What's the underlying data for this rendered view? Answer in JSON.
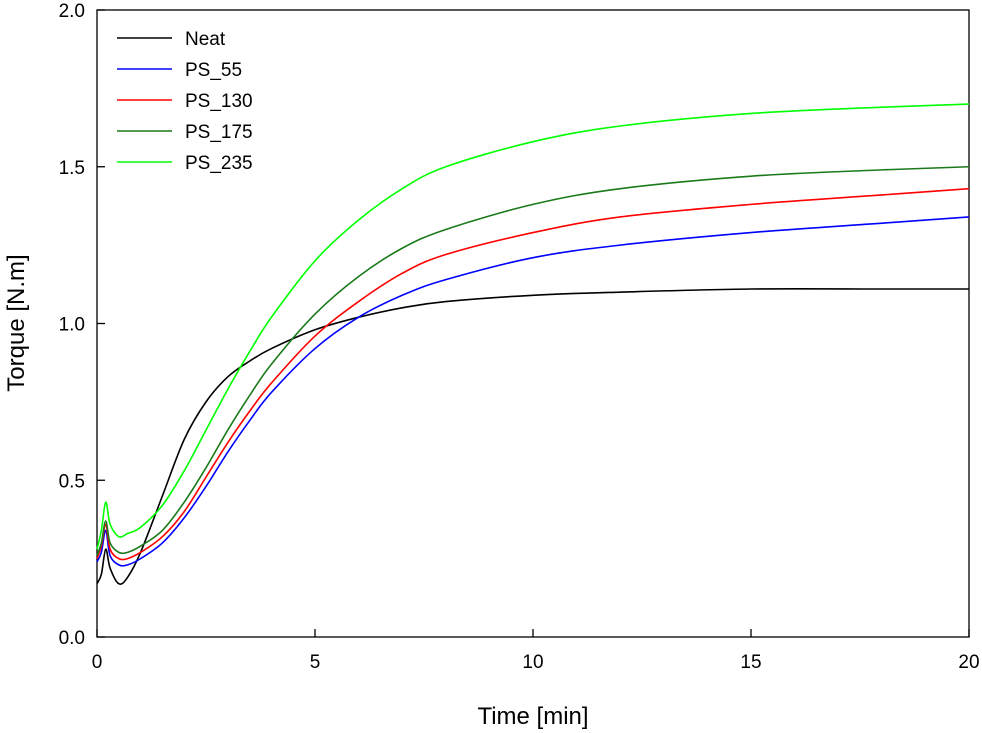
{
  "chart_data": {
    "type": "line",
    "title": "",
    "xlabel": "Time [min]",
    "ylabel": "Torque [N.m]",
    "xlim": [
      0,
      20
    ],
    "ylim": [
      0,
      2.0
    ],
    "xticks": [
      0,
      5,
      10,
      15,
      20
    ],
    "xtick_labels": [
      "0",
      "5",
      "10",
      "15",
      "20"
    ],
    "yticks": [
      0,
      0.5,
      1.0,
      1.5,
      2.0
    ],
    "ytick_labels": [
      "0.0",
      "0.5",
      "1.0",
      "1.5",
      "2.0"
    ],
    "grid": false,
    "legend_position": "top-left",
    "series": [
      {
        "name": "Neat",
        "color": "#000000",
        "x": [
          0,
          0.1,
          0.2,
          0.3,
          0.5,
          0.7,
          1.0,
          1.5,
          2.0,
          2.5,
          3.0,
          3.5,
          4.0,
          5.0,
          6.0,
          7.0,
          8.0,
          10.0,
          12.0,
          15.0,
          18.0,
          20.0
        ],
        "y": [
          0.17,
          0.2,
          0.28,
          0.22,
          0.17,
          0.19,
          0.27,
          0.45,
          0.63,
          0.75,
          0.83,
          0.88,
          0.92,
          0.98,
          1.02,
          1.05,
          1.07,
          1.09,
          1.1,
          1.11,
          1.11,
          1.11
        ]
      },
      {
        "name": "PS_55",
        "color": "#0000ff",
        "x": [
          0,
          0.1,
          0.2,
          0.3,
          0.5,
          0.7,
          1.0,
          1.5,
          2.0,
          2.5,
          3.0,
          3.5,
          4.0,
          5.0,
          6.0,
          7.0,
          8.0,
          10.0,
          12.0,
          15.0,
          18.0,
          20.0
        ],
        "y": [
          0.24,
          0.27,
          0.34,
          0.26,
          0.23,
          0.23,
          0.25,
          0.3,
          0.38,
          0.48,
          0.59,
          0.69,
          0.78,
          0.92,
          1.02,
          1.09,
          1.14,
          1.21,
          1.25,
          1.29,
          1.32,
          1.34
        ]
      },
      {
        "name": "PS_130",
        "color": "#ff0000",
        "x": [
          0,
          0.1,
          0.2,
          0.3,
          0.5,
          0.7,
          1.0,
          1.5,
          2.0,
          2.5,
          3.0,
          3.5,
          4.0,
          5.0,
          6.0,
          7.0,
          8.0,
          10.0,
          12.0,
          15.0,
          18.0,
          20.0
        ],
        "y": [
          0.25,
          0.29,
          0.36,
          0.28,
          0.25,
          0.25,
          0.27,
          0.32,
          0.4,
          0.51,
          0.62,
          0.72,
          0.81,
          0.96,
          1.07,
          1.16,
          1.22,
          1.29,
          1.34,
          1.38,
          1.41,
          1.43
        ]
      },
      {
        "name": "PS_175",
        "color": "#1a7a1a",
        "x": [
          0,
          0.1,
          0.2,
          0.3,
          0.5,
          0.7,
          1.0,
          1.5,
          2.0,
          2.5,
          3.0,
          3.5,
          4.0,
          5.0,
          6.0,
          7.0,
          8.0,
          10.0,
          12.0,
          15.0,
          18.0,
          20.0
        ],
        "y": [
          0.26,
          0.3,
          0.37,
          0.3,
          0.27,
          0.27,
          0.29,
          0.34,
          0.43,
          0.54,
          0.66,
          0.77,
          0.87,
          1.03,
          1.15,
          1.24,
          1.3,
          1.38,
          1.43,
          1.47,
          1.49,
          1.5
        ]
      },
      {
        "name": "PS_235",
        "color": "#00ff00",
        "x": [
          0,
          0.1,
          0.2,
          0.3,
          0.5,
          0.7,
          1.0,
          1.5,
          2.0,
          2.5,
          3.0,
          3.5,
          4.0,
          5.0,
          6.0,
          7.0,
          8.0,
          10.0,
          12.0,
          15.0,
          18.0,
          20.0
        ],
        "y": [
          0.28,
          0.34,
          0.43,
          0.36,
          0.32,
          0.33,
          0.35,
          0.42,
          0.53,
          0.66,
          0.79,
          0.91,
          1.02,
          1.2,
          1.33,
          1.43,
          1.5,
          1.58,
          1.63,
          1.67,
          1.69,
          1.7
        ]
      }
    ]
  }
}
